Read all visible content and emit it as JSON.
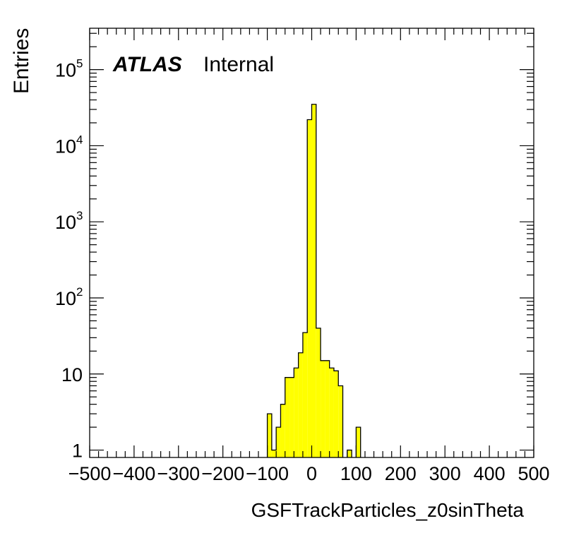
{
  "chart_data": {
    "type": "bar",
    "xlabel": "GSFTrackParticles_z0sinTheta",
    "ylabel": "Entries",
    "xlim": [
      -500,
      500
    ],
    "ylim": [
      0.8,
      350000
    ],
    "log_y": true,
    "grid": false,
    "fill_color": "#ffff00",
    "edge_color": "#000000",
    "label_main": "ATLAS",
    "label_sub": "Internal",
    "x_ticks": [
      -500,
      -400,
      -300,
      -200,
      -100,
      0,
      100,
      200,
      300,
      400,
      500
    ],
    "x_tick_labels": [
      "−500",
      "−400",
      "−300",
      "−200",
      "−100",
      "0",
      "100",
      "200",
      "300",
      "400",
      "500"
    ],
    "y_ticks": [
      {
        "value": 1,
        "base": "1",
        "exp": ""
      },
      {
        "value": 10,
        "base": "10",
        "exp": ""
      },
      {
        "value": 100,
        "base": "10",
        "exp": "2"
      },
      {
        "value": 1000,
        "base": "10",
        "exp": "3"
      },
      {
        "value": 10000,
        "base": "10",
        "exp": "4"
      },
      {
        "value": 100000,
        "base": "10",
        "exp": "5"
      }
    ],
    "bins": [
      {
        "x0": -100,
        "x1": -90,
        "y": 3
      },
      {
        "x0": -90,
        "x1": -80,
        "y": 1
      },
      {
        "x0": -80,
        "x1": -70,
        "y": 2
      },
      {
        "x0": -70,
        "x1": -60,
        "y": 4
      },
      {
        "x0": -60,
        "x1": -50,
        "y": 9
      },
      {
        "x0": -50,
        "x1": -40,
        "y": 9
      },
      {
        "x0": -40,
        "x1": -30,
        "y": 12
      },
      {
        "x0": -30,
        "x1": -20,
        "y": 19
      },
      {
        "x0": -20,
        "x1": -10,
        "y": 35
      },
      {
        "x0": -10,
        "x1": 0,
        "y": 22000
      },
      {
        "x0": 0,
        "x1": 10,
        "y": 35000
      },
      {
        "x0": 10,
        "x1": 20,
        "y": 40
      },
      {
        "x0": 20,
        "x1": 30,
        "y": 15
      },
      {
        "x0": 30,
        "x1": 40,
        "y": 15
      },
      {
        "x0": 40,
        "x1": 50,
        "y": 12
      },
      {
        "x0": 50,
        "x1": 60,
        "y": 11
      },
      {
        "x0": 60,
        "x1": 70,
        "y": 7
      },
      {
        "x0": 80,
        "x1": 90,
        "y": 1
      },
      {
        "x0": 100,
        "x1": 110,
        "y": 2
      }
    ]
  }
}
